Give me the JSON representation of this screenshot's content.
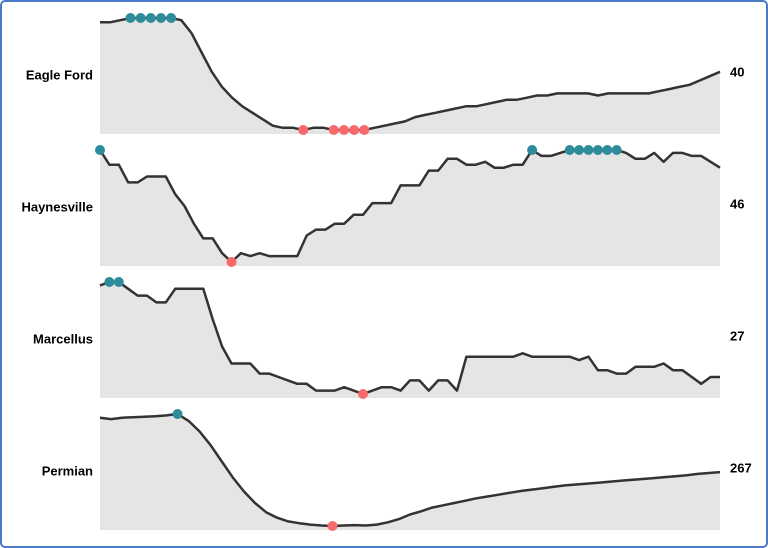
{
  "chart_data": {
    "type": "line",
    "line_color": "#333333",
    "fill_color": "#e5e5e5",
    "max_color": "#2e8b99",
    "min_color": "#f8696b",
    "series": [
      {
        "name": "Eagle Ford",
        "ylim": [
          13,
          65
        ],
        "values": [
          63,
          63,
          64,
          65,
          65,
          65,
          65,
          65,
          64,
          58,
          49,
          40,
          33,
          28,
          24,
          21,
          18,
          15,
          14,
          14,
          13,
          14,
          14,
          13,
          13,
          13,
          13,
          14,
          15,
          16,
          17,
          19,
          20,
          21,
          22,
          23,
          24,
          24,
          25,
          26,
          27,
          27,
          28,
          29,
          29,
          30,
          30,
          30,
          30,
          29,
          30,
          30,
          30,
          30,
          30,
          31,
          32,
          33,
          34,
          36,
          38,
          40
        ]
      },
      {
        "name": "Haynesville",
        "ylim": [
          14,
          52
        ],
        "values": [
          52,
          47,
          47,
          41,
          41,
          43,
          43,
          43,
          37,
          33,
          27,
          22,
          22,
          17,
          14,
          17,
          16,
          17,
          16,
          16,
          16,
          16,
          23,
          25,
          25,
          27,
          27,
          30,
          30,
          34,
          34,
          34,
          40,
          40,
          40,
          45,
          45,
          49,
          49,
          47,
          47,
          48,
          46,
          46,
          47,
          47,
          52,
          50,
          50,
          51,
          52,
          52,
          52,
          52,
          52,
          52,
          51,
          49,
          49,
          51,
          48,
          51,
          51,
          50,
          50,
          48,
          46
        ]
      },
      {
        "name": "Marcellus",
        "ylim": [
          22,
          55
        ],
        "values": [
          54,
          55,
          55,
          53,
          51,
          51,
          49,
          49,
          53,
          53,
          53,
          53,
          44,
          36,
          31,
          31,
          31,
          28,
          28,
          27,
          26,
          25,
          25,
          23,
          23,
          23,
          24,
          23,
          22,
          23,
          24,
          24,
          23,
          26,
          26,
          23,
          26,
          26,
          23,
          33,
          33,
          33,
          33,
          33,
          33,
          34,
          33,
          33,
          33,
          33,
          33,
          32,
          33,
          29,
          29,
          28,
          28,
          30,
          30,
          30,
          31,
          29,
          29,
          27,
          25,
          27,
          27
        ]
      },
      {
        "name": "Permian",
        "ylim": [
          150,
          393
        ],
        "values": [
          385,
          382,
          385,
          386,
          387,
          388,
          390,
          393,
          378,
          355,
          325,
          290,
          255,
          225,
          200,
          180,
          168,
          160,
          156,
          153,
          151,
          150,
          151,
          152,
          151,
          153,
          158,
          165,
          175,
          182,
          190,
          195,
          200,
          205,
          210,
          214,
          218,
          222,
          226,
          229,
          232,
          235,
          238,
          240,
          242,
          244,
          246,
          248,
          250,
          252,
          254,
          256,
          258,
          260,
          263,
          265,
          267
        ]
      }
    ]
  }
}
